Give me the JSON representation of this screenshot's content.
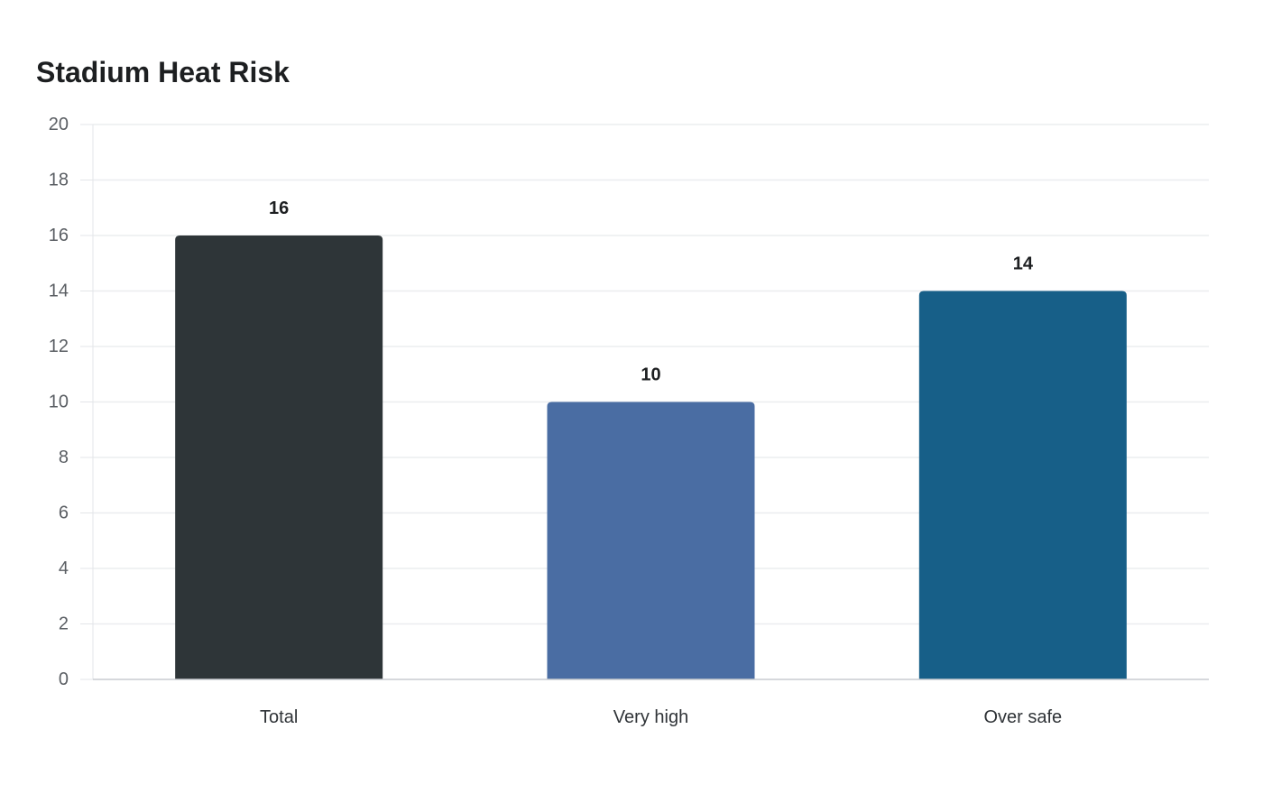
{
  "chart_data": {
    "type": "bar",
    "title": "Stadium Heat Risk",
    "xlabel": "",
    "ylabel": "",
    "categories": [
      "Total",
      "Very high",
      "Over safe"
    ],
    "values": [
      16,
      10,
      14
    ],
    "value_labels": [
      "16",
      "10",
      "14"
    ],
    "colors": [
      "#2e3538",
      "#4a6da3",
      "#175f88"
    ],
    "ylim": [
      0,
      20
    ],
    "yticks": [
      0,
      2,
      4,
      6,
      8,
      10,
      12,
      14,
      16,
      18,
      20
    ],
    "grid": true,
    "legend": "none"
  }
}
